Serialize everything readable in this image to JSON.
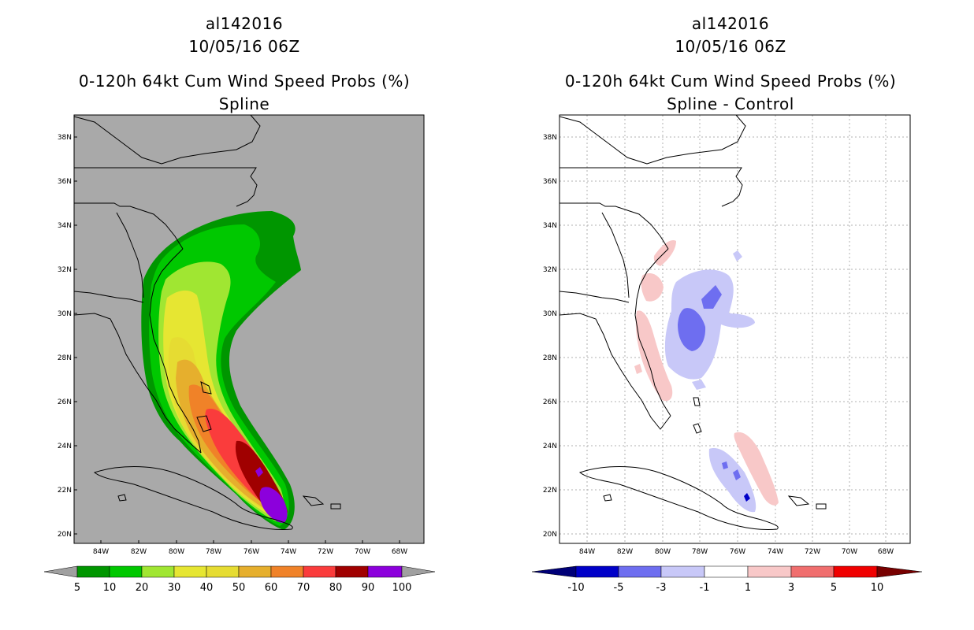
{
  "left": {
    "storm_id": "al142016",
    "datetime": "10/05/16 06Z",
    "product": "0-120h 64kt Cum Wind Speed Probs (%)",
    "variant": "Spline",
    "colorbar": {
      "labels": [
        "5",
        "10",
        "20",
        "30",
        "40",
        "50",
        "60",
        "70",
        "80",
        "90",
        "100"
      ],
      "colors": [
        "#009600",
        "#00c800",
        "#00e600",
        "#a0e632",
        "#e6e632",
        "#e6dc32",
        "#e6af2d",
        "#f08228",
        "#fa3c3c",
        "#a00000",
        "#8c00dc"
      ],
      "over_color": "#a0a0a0",
      "under_color": "#a0a0a0"
    },
    "background_color": "#a9a9a9"
  },
  "right": {
    "storm_id": "al142016",
    "datetime": "10/05/16 06Z",
    "product": "0-120h 64kt Cum Wind Speed Probs (%)",
    "variant": "Spline - Control",
    "colorbar": {
      "labels": [
        "-10",
        "-5",
        "-3",
        "-1",
        "1",
        "3",
        "5",
        "10"
      ],
      "colors": [
        "#0000c8",
        "#6e6ef0",
        "#c8c8f8",
        "#ffffff",
        "#f8c8c8",
        "#f06e6e",
        "#f00000"
      ],
      "over_color": "#780000",
      "under_color": "#000078"
    }
  },
  "axes": {
    "lat_labels": [
      "38N",
      "36N",
      "34N",
      "32N",
      "30N",
      "28N",
      "26N",
      "24N",
      "22N",
      "20N"
    ],
    "lon_labels": [
      "84W",
      "82W",
      "80W",
      "78W",
      "76W",
      "74W",
      "72W",
      "70W",
      "68W"
    ]
  }
}
